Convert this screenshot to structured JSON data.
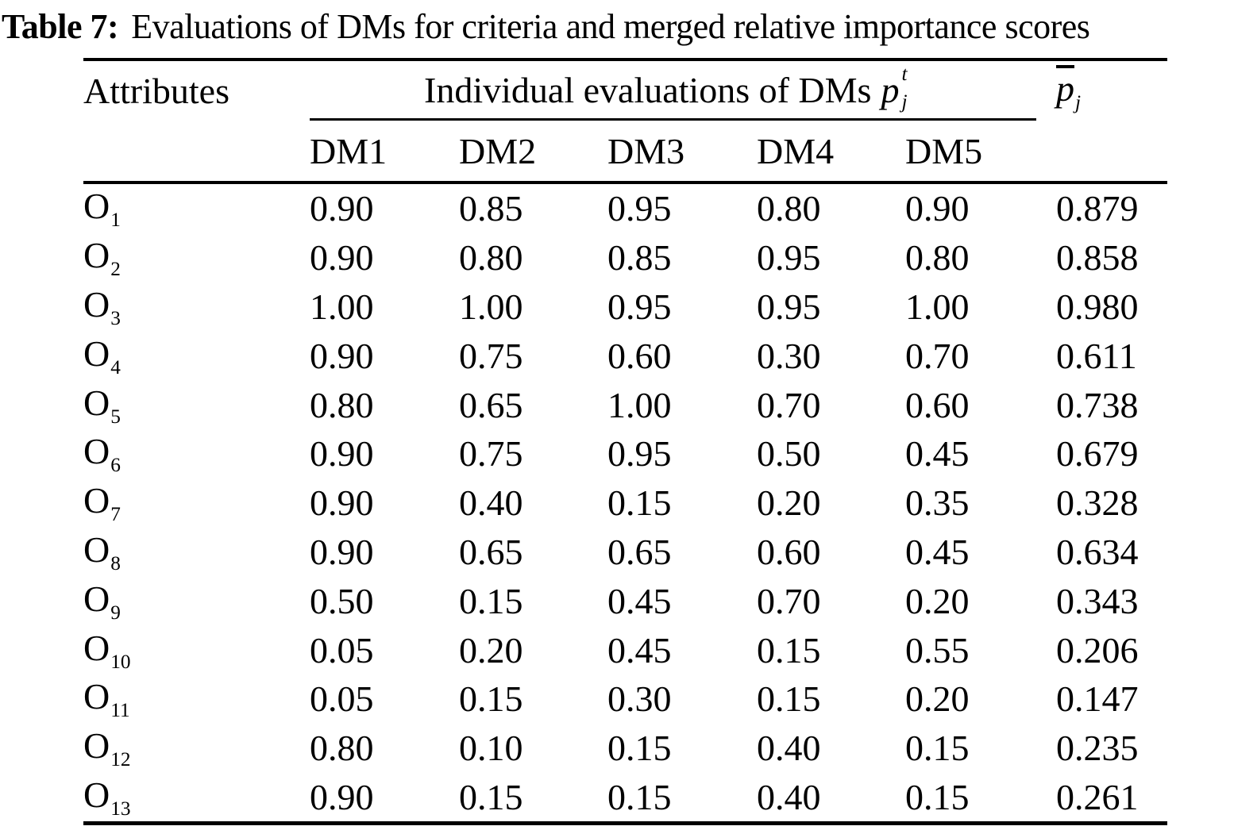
{
  "caption": {
    "label": "Table 7:",
    "text": "Evaluations of DMs for criteria and merged relative importance scores"
  },
  "table": {
    "attributes_header": "Attributes",
    "group_header": "Individual evaluations of DMs",
    "group_header_symbol": {
      "base": "p",
      "sup": "t",
      "sub": "j"
    },
    "mean_header_symbol": {
      "base": "p",
      "sub": "j"
    },
    "dm_headers": [
      "DM1",
      "DM2",
      "DM3",
      "DM4",
      "DM5"
    ],
    "rows": [
      {
        "attribute_base": "O",
        "attribute_sub": "1",
        "values": [
          "0.90",
          "0.85",
          "0.95",
          "0.80",
          "0.90"
        ],
        "mean": "0.879"
      },
      {
        "attribute_base": "O",
        "attribute_sub": "2",
        "values": [
          "0.90",
          "0.80",
          "0.85",
          "0.95",
          "0.80"
        ],
        "mean": "0.858"
      },
      {
        "attribute_base": "O",
        "attribute_sub": "3",
        "values": [
          "1.00",
          "1.00",
          "0.95",
          "0.95",
          "1.00"
        ],
        "mean": "0.980"
      },
      {
        "attribute_base": "O",
        "attribute_sub": "4",
        "values": [
          "0.90",
          "0.75",
          "0.60",
          "0.30",
          "0.70"
        ],
        "mean": "0.611"
      },
      {
        "attribute_base": "O",
        "attribute_sub": "5",
        "values": [
          "0.80",
          "0.65",
          "1.00",
          "0.70",
          "0.60"
        ],
        "mean": "0.738"
      },
      {
        "attribute_base": "O",
        "attribute_sub": "6",
        "values": [
          "0.90",
          "0.75",
          "0.95",
          "0.50",
          "0.45"
        ],
        "mean": "0.679"
      },
      {
        "attribute_base": "O",
        "attribute_sub": "7",
        "values": [
          "0.90",
          "0.40",
          "0.15",
          "0.20",
          "0.35"
        ],
        "mean": "0.328"
      },
      {
        "attribute_base": "O",
        "attribute_sub": "8",
        "values": [
          "0.90",
          "0.65",
          "0.65",
          "0.60",
          "0.45"
        ],
        "mean": "0.634"
      },
      {
        "attribute_base": "O",
        "attribute_sub": "9",
        "values": [
          "0.50",
          "0.15",
          "0.45",
          "0.70",
          "0.20"
        ],
        "mean": "0.343"
      },
      {
        "attribute_base": "O",
        "attribute_sub": "10",
        "values": [
          "0.05",
          "0.20",
          "0.45",
          "0.15",
          "0.55"
        ],
        "mean": "0.206"
      },
      {
        "attribute_base": "O",
        "attribute_sub": "11",
        "values": [
          "0.05",
          "0.15",
          "0.30",
          "0.15",
          "0.20"
        ],
        "mean": "0.147"
      },
      {
        "attribute_base": "O",
        "attribute_sub": "12",
        "values": [
          "0.80",
          "0.10",
          "0.15",
          "0.40",
          "0.15"
        ],
        "mean": "0.235"
      },
      {
        "attribute_base": "O",
        "attribute_sub": "13",
        "values": [
          "0.90",
          "0.15",
          "0.15",
          "0.40",
          "0.15"
        ],
        "mean": "0.261"
      }
    ]
  },
  "colors": {
    "text": "#000000",
    "background": "#ffffff",
    "rule": "#000000"
  }
}
